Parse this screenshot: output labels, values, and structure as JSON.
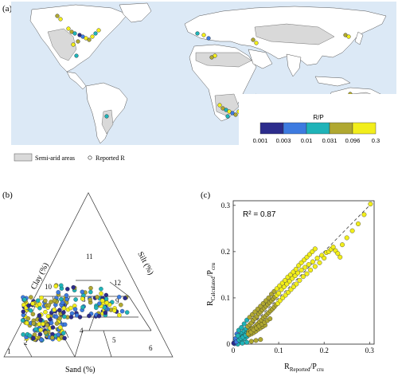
{
  "panel_a": {
    "label": "(a)",
    "colorbar": {
      "title": "R/P",
      "ticks": [
        "0.001",
        "0.003",
        "0.01",
        "0.031",
        "0.096",
        "0.3"
      ],
      "colors": [
        "#2c2c8c",
        "#3d7be0",
        "#1fb3b8",
        "#b0a831",
        "#f2ee1b"
      ]
    },
    "legend": {
      "semi_arid_label": "Semi-arid areas",
      "reported_label": "Reported R"
    },
    "colors": {
      "ocean": "#dce9f6",
      "land": "#ffffff",
      "semi_arid": "#d9d9d9"
    }
  },
  "panel_b": {
    "label": "(b)",
    "clay_label": "Clay (%)",
    "silt_label": "Silt (%)",
    "sand_label": "Sand (%)",
    "classes": [
      "1",
      "2",
      "3",
      "4",
      "5",
      "6",
      "7",
      "8",
      "9",
      "10",
      "11",
      "12"
    ]
  },
  "panel_c": {
    "label": "(c)",
    "r2_text": "R² = 0.87",
    "ylabel_main": "R",
    "ylabel_sub": "Calculated",
    "ylabel_den": "/P",
    "ylabel_densub": "cru",
    "xlabel_main": "R",
    "xlabel_sub": "Reported",
    "xlabel_den": "/P",
    "xlabel_densub": "cru"
  },
  "chart_data": {
    "type": "scatter",
    "title": "",
    "xlabel": "R_Reported/P_cru",
    "ylabel": "R_Calculated/P_cru",
    "xlim": [
      0,
      0.31
    ],
    "ylim": [
      0,
      0.31
    ],
    "xticks": [
      "0",
      "0.1",
      "0.2",
      "0.3"
    ],
    "yticks": [
      "0",
      "0.1",
      "0.2",
      "0.3"
    ],
    "grid": false,
    "reference_line": "1:1 dashed",
    "annotation": "R² = 0.87",
    "points": [
      [
        0.002,
        0.003
      ],
      [
        0.004,
        0.006
      ],
      [
        0.006,
        0.004
      ],
      [
        0.008,
        0.011
      ],
      [
        0.01,
        0.008
      ],
      [
        0.012,
        0.015
      ],
      [
        0.014,
        0.01
      ],
      [
        0.016,
        0.02
      ],
      [
        0.018,
        0.014
      ],
      [
        0.02,
        0.025
      ],
      [
        0.022,
        0.017
      ],
      [
        0.024,
        0.028
      ],
      [
        0.026,
        0.021
      ],
      [
        0.028,
        0.033
      ],
      [
        0.03,
        0.024
      ],
      [
        0.032,
        0.038
      ],
      [
        0.034,
        0.027
      ],
      [
        0.036,
        0.042
      ],
      [
        0.038,
        0.03
      ],
      [
        0.04,
        0.046
      ],
      [
        0.042,
        0.034
      ],
      [
        0.044,
        0.052
      ],
      [
        0.046,
        0.036
      ],
      [
        0.048,
        0.056
      ],
      [
        0.05,
        0.04
      ],
      [
        0.052,
        0.06
      ],
      [
        0.054,
        0.044
      ],
      [
        0.056,
        0.066
      ],
      [
        0.058,
        0.048
      ],
      [
        0.06,
        0.07
      ],
      [
        0.062,
        0.052
      ],
      [
        0.064,
        0.074
      ],
      [
        0.066,
        0.057
      ],
      [
        0.068,
        0.078
      ],
      [
        0.07,
        0.06
      ],
      [
        0.072,
        0.082
      ],
      [
        0.074,
        0.064
      ],
      [
        0.076,
        0.086
      ],
      [
        0.078,
        0.068
      ],
      [
        0.08,
        0.09
      ],
      [
        0.082,
        0.072
      ],
      [
        0.084,
        0.094
      ],
      [
        0.086,
        0.076
      ],
      [
        0.088,
        0.098
      ],
      [
        0.09,
        0.08
      ],
      [
        0.092,
        0.102
      ],
      [
        0.094,
        0.085
      ],
      [
        0.096,
        0.106
      ],
      [
        0.098,
        0.088
      ],
      [
        0.1,
        0.11
      ],
      [
        0.103,
        0.094
      ],
      [
        0.106,
        0.118
      ],
      [
        0.109,
        0.1
      ],
      [
        0.112,
        0.124
      ],
      [
        0.115,
        0.106
      ],
      [
        0.118,
        0.13
      ],
      [
        0.121,
        0.112
      ],
      [
        0.124,
        0.136
      ],
      [
        0.127,
        0.118
      ],
      [
        0.13,
        0.142
      ],
      [
        0.133,
        0.124
      ],
      [
        0.136,
        0.148
      ],
      [
        0.139,
        0.13
      ],
      [
        0.142,
        0.154
      ],
      [
        0.146,
        0.138
      ],
      [
        0.15,
        0.16
      ],
      [
        0.154,
        0.146
      ],
      [
        0.158,
        0.166
      ],
      [
        0.162,
        0.152
      ],
      [
        0.166,
        0.172
      ],
      [
        0.17,
        0.16
      ],
      [
        0.175,
        0.178
      ],
      [
        0.18,
        0.168
      ],
      [
        0.185,
        0.186
      ],
      [
        0.19,
        0.176
      ],
      [
        0.195,
        0.192
      ],
      [
        0.2,
        0.186
      ],
      [
        0.205,
        0.198
      ],
      [
        0.21,
        0.2
      ],
      [
        0.215,
        0.205
      ],
      [
        0.22,
        0.21
      ],
      [
        0.225,
        0.202
      ],
      [
        0.23,
        0.196
      ],
      [
        0.235,
        0.188
      ],
      [
        0.24,
        0.215
      ],
      [
        0.25,
        0.23
      ],
      [
        0.262,
        0.245
      ],
      [
        0.275,
        0.26
      ],
      [
        0.288,
        0.28
      ],
      [
        0.302,
        0.303
      ],
      [
        0.015,
        0.006
      ],
      [
        0.02,
        0.009
      ],
      [
        0.025,
        0.012
      ],
      [
        0.03,
        0.016
      ],
      [
        0.035,
        0.02
      ],
      [
        0.04,
        0.022
      ],
      [
        0.045,
        0.025
      ],
      [
        0.05,
        0.028
      ],
      [
        0.055,
        0.032
      ],
      [
        0.06,
        0.035
      ],
      [
        0.065,
        0.038
      ],
      [
        0.07,
        0.041
      ],
      [
        0.008,
        0.022
      ],
      [
        0.012,
        0.03
      ],
      [
        0.018,
        0.036
      ],
      [
        0.024,
        0.044
      ],
      [
        0.03,
        0.052
      ],
      [
        0.036,
        0.058
      ],
      [
        0.042,
        0.064
      ],
      [
        0.048,
        0.07
      ],
      [
        0.054,
        0.076
      ],
      [
        0.06,
        0.082
      ],
      [
        0.066,
        0.088
      ],
      [
        0.072,
        0.094
      ],
      [
        0.078,
        0.1
      ],
      [
        0.084,
        0.108
      ],
      [
        0.09,
        0.114
      ],
      [
        0.096,
        0.12
      ],
      [
        0.102,
        0.126
      ],
      [
        0.108,
        0.132
      ],
      [
        0.114,
        0.138
      ],
      [
        0.12,
        0.145
      ],
      [
        0.126,
        0.15
      ],
      [
        0.132,
        0.156
      ],
      [
        0.138,
        0.162
      ],
      [
        0.144,
        0.17
      ],
      [
        0.15,
        0.176
      ],
      [
        0.156,
        0.182
      ],
      [
        0.162,
        0.188
      ],
      [
        0.168,
        0.194
      ],
      [
        0.174,
        0.2
      ],
      [
        0.18,
        0.206
      ],
      [
        0.01,
        0.0
      ],
      [
        0.02,
        0.002
      ],
      [
        0.03,
        0.004
      ],
      [
        0.04,
        0.006
      ],
      [
        0.05,
        0.008
      ],
      [
        0.06,
        0.01
      ],
      [
        0.005,
        0.012
      ],
      [
        0.01,
        0.018
      ],
      [
        0.003,
        0.001
      ],
      [
        0.001,
        0.002
      ],
      [
        0.007,
        0.005
      ],
      [
        0.013,
        0.009
      ],
      [
        0.017,
        0.012
      ],
      [
        0.021,
        0.015
      ],
      [
        0.027,
        0.019
      ],
      [
        0.033,
        0.022
      ],
      [
        0.039,
        0.026
      ],
      [
        0.045,
        0.031
      ],
      [
        0.051,
        0.035
      ],
      [
        0.057,
        0.039
      ],
      [
        0.063,
        0.043
      ],
      [
        0.069,
        0.047
      ],
      [
        0.075,
        0.051
      ],
      [
        0.081,
        0.055
      ]
    ]
  }
}
